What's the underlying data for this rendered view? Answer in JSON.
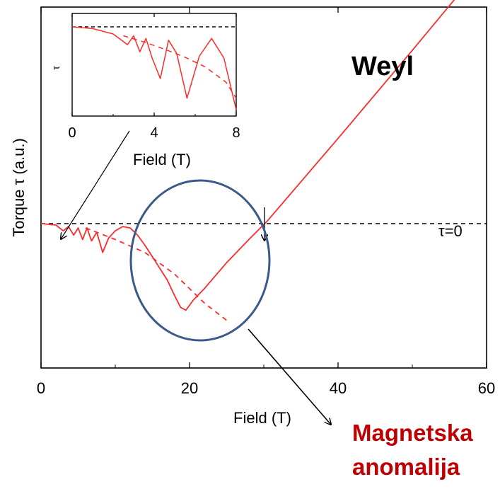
{
  "chart_data": [
    {
      "type": "line",
      "role": "main",
      "xlabel": "Field (T)",
      "ylabel": "Torque τ (a.u.)",
      "xlim": [
        0,
        60
      ],
      "ylim": [
        -1.0,
        1.5
      ],
      "xticks": [
        0,
        20,
        40,
        60
      ],
      "x_tick_labels": [
        "0",
        "20",
        "40",
        "60"
      ],
      "y_tick_labels": [],
      "grid": false,
      "reference_line": {
        "y": 0,
        "style": "dashed",
        "color": "#000000",
        "label": "τ=0"
      },
      "series": [
        {
          "style": "solid",
          "color": "#ff2a2a",
          "x": [
            0,
            2,
            3,
            3.7,
            4.4,
            5.0,
            5.6,
            6.2,
            6.8,
            7.5,
            8.3,
            9.1,
            10.0,
            11.0,
            12.0,
            13.0,
            14.0,
            15.0,
            16.0,
            17.0,
            18.0,
            18.8,
            19.5,
            20.5,
            22.0,
            25.0,
            28.0,
            30.5,
            40.0,
            50.0,
            60.0
          ],
          "y": [
            0,
            -0.01,
            -0.05,
            -0.02,
            -0.08,
            -0.03,
            -0.11,
            -0.03,
            -0.12,
            -0.06,
            -0.2,
            -0.1,
            -0.05,
            -0.02,
            -0.03,
            -0.08,
            -0.15,
            -0.23,
            -0.31,
            -0.39,
            -0.5,
            -0.58,
            -0.6,
            -0.53,
            -0.45,
            -0.27,
            -0.11,
            0.02,
            0.59,
            1.2,
            1.82
          ]
        },
        {
          "style": "dashed",
          "color": "#ff2a2a",
          "x": [
            6,
            10,
            14,
            18,
            22,
            25
          ],
          "y": [
            -0.03,
            -0.11,
            -0.2,
            -0.35,
            -0.55,
            -0.67
          ]
        }
      ]
    },
    {
      "type": "line",
      "role": "inset",
      "xlabel": "Field (T)",
      "ylabel": "τ",
      "xlim": [
        0,
        8
      ],
      "ylim": [
        -1.0,
        0.15
      ],
      "xticks": [
        0,
        4,
        8
      ],
      "x_tick_labels": [
        "0",
        "4",
        "8"
      ],
      "reference_line": {
        "y": 0,
        "style": "dashed",
        "color": "#000000"
      },
      "series": [
        {
          "style": "solid",
          "color": "#ff2a2a",
          "x": [
            0,
            1.0,
            2.0,
            2.7,
            3.0,
            3.3,
            3.6,
            3.9,
            4.3,
            4.7,
            5.1,
            5.6,
            6.2,
            6.8,
            7.4,
            8.0
          ],
          "y": [
            0,
            -0.02,
            -0.08,
            -0.2,
            -0.1,
            -0.28,
            -0.13,
            -0.35,
            -0.58,
            -0.15,
            -0.3,
            -0.8,
            -0.33,
            -0.13,
            -0.35,
            -0.93
          ]
        },
        {
          "style": "dashed",
          "color": "#ff2a2a",
          "x": [
            2.5,
            3.5,
            4.5,
            5.5,
            6.5,
            7.5,
            8.0
          ],
          "y": [
            -0.1,
            -0.17,
            -0.25,
            -0.34,
            -0.45,
            -0.62,
            -0.8
          ]
        }
      ]
    }
  ],
  "annotations": {
    "weyl_label": "Weyl",
    "anomaly_line1": "Magnetska",
    "anomaly_line2": "anomalija",
    "anomaly_color": "#c00000",
    "ellipse_color": "#3b5a8a"
  }
}
